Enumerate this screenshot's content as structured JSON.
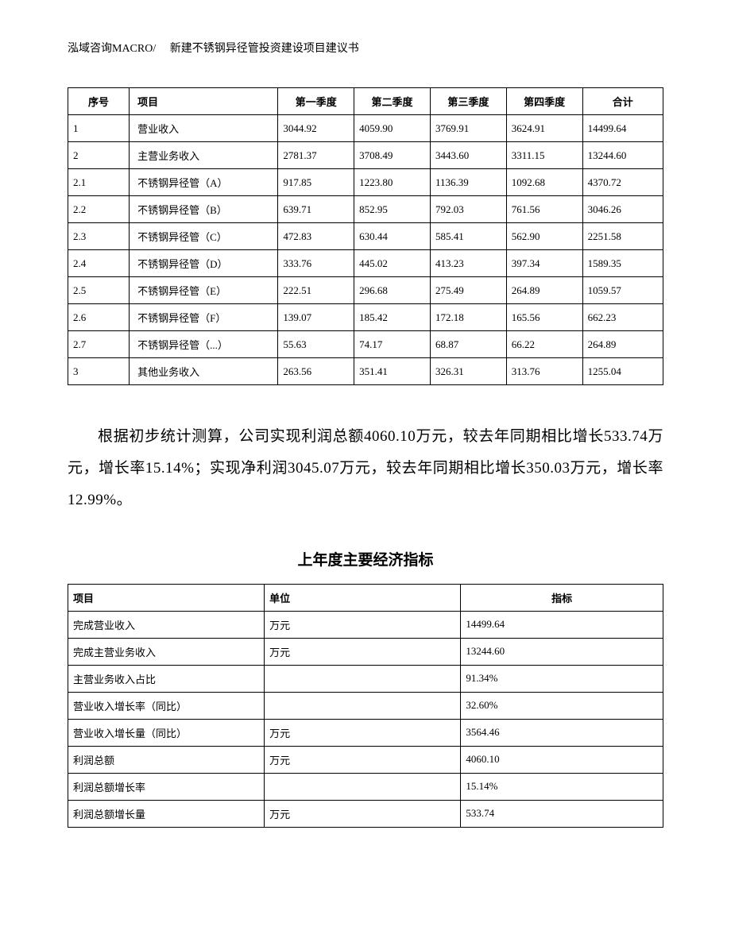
{
  "header": "泓域咨询MACRO/　 新建不锈钢异径管投资建设项目建议书",
  "table1": {
    "headers": [
      "序号",
      "项目",
      "第一季度",
      "第二季度",
      "第三季度",
      "第四季度",
      "合计"
    ],
    "rows": [
      [
        "1",
        "营业收入",
        "3044.92",
        "4059.90",
        "3769.91",
        "3624.91",
        "14499.64"
      ],
      [
        "2",
        "主营业务收入",
        "2781.37",
        "3708.49",
        "3443.60",
        "3311.15",
        "13244.60"
      ],
      [
        "2.1",
        "不锈钢异径管（A）",
        "917.85",
        "1223.80",
        "1136.39",
        "1092.68",
        "4370.72"
      ],
      [
        "2.2",
        "不锈钢异径管（B）",
        "639.71",
        "852.95",
        "792.03",
        "761.56",
        "3046.26"
      ],
      [
        "2.3",
        "不锈钢异径管（C）",
        "472.83",
        "630.44",
        "585.41",
        "562.90",
        "2251.58"
      ],
      [
        "2.4",
        "不锈钢异径管（D）",
        "333.76",
        "445.02",
        "413.23",
        "397.34",
        "1589.35"
      ],
      [
        "2.5",
        "不锈钢异径管（E）",
        "222.51",
        "296.68",
        "275.49",
        "264.89",
        "1059.57"
      ],
      [
        "2.6",
        "不锈钢异径管（F）",
        "139.07",
        "185.42",
        "172.18",
        "165.56",
        "662.23"
      ],
      [
        "2.7",
        "不锈钢异径管（...）",
        "55.63",
        "74.17",
        "68.87",
        "66.22",
        "264.89"
      ],
      [
        "3",
        "其他业务收入",
        "263.56",
        "351.41",
        "326.31",
        "313.76",
        "1255.04"
      ]
    ]
  },
  "paragraph": "根据初步统计测算，公司实现利润总额4060.10万元，较去年同期相比增长533.74万元，增长率15.14%；实现净利润3045.07万元，较去年同期相比增长350.03万元，增长率12.99%。",
  "section_title": "上年度主要经济指标",
  "table2": {
    "headers": [
      "项目",
      "单位",
      "指标"
    ],
    "rows": [
      [
        "完成营业收入",
        "万元",
        "14499.64"
      ],
      [
        "完成主营业务收入",
        "万元",
        "13244.60"
      ],
      [
        "主营业务收入占比",
        "",
        "91.34%"
      ],
      [
        "营业收入增长率（同比）",
        "",
        "32.60%"
      ],
      [
        "营业收入增长量（同比）",
        "万元",
        "3564.46"
      ],
      [
        "利润总额",
        "万元",
        "4060.10"
      ],
      [
        "利润总额增长率",
        "",
        "15.14%"
      ],
      [
        "利润总额增长量",
        "万元",
        "533.74"
      ]
    ]
  }
}
